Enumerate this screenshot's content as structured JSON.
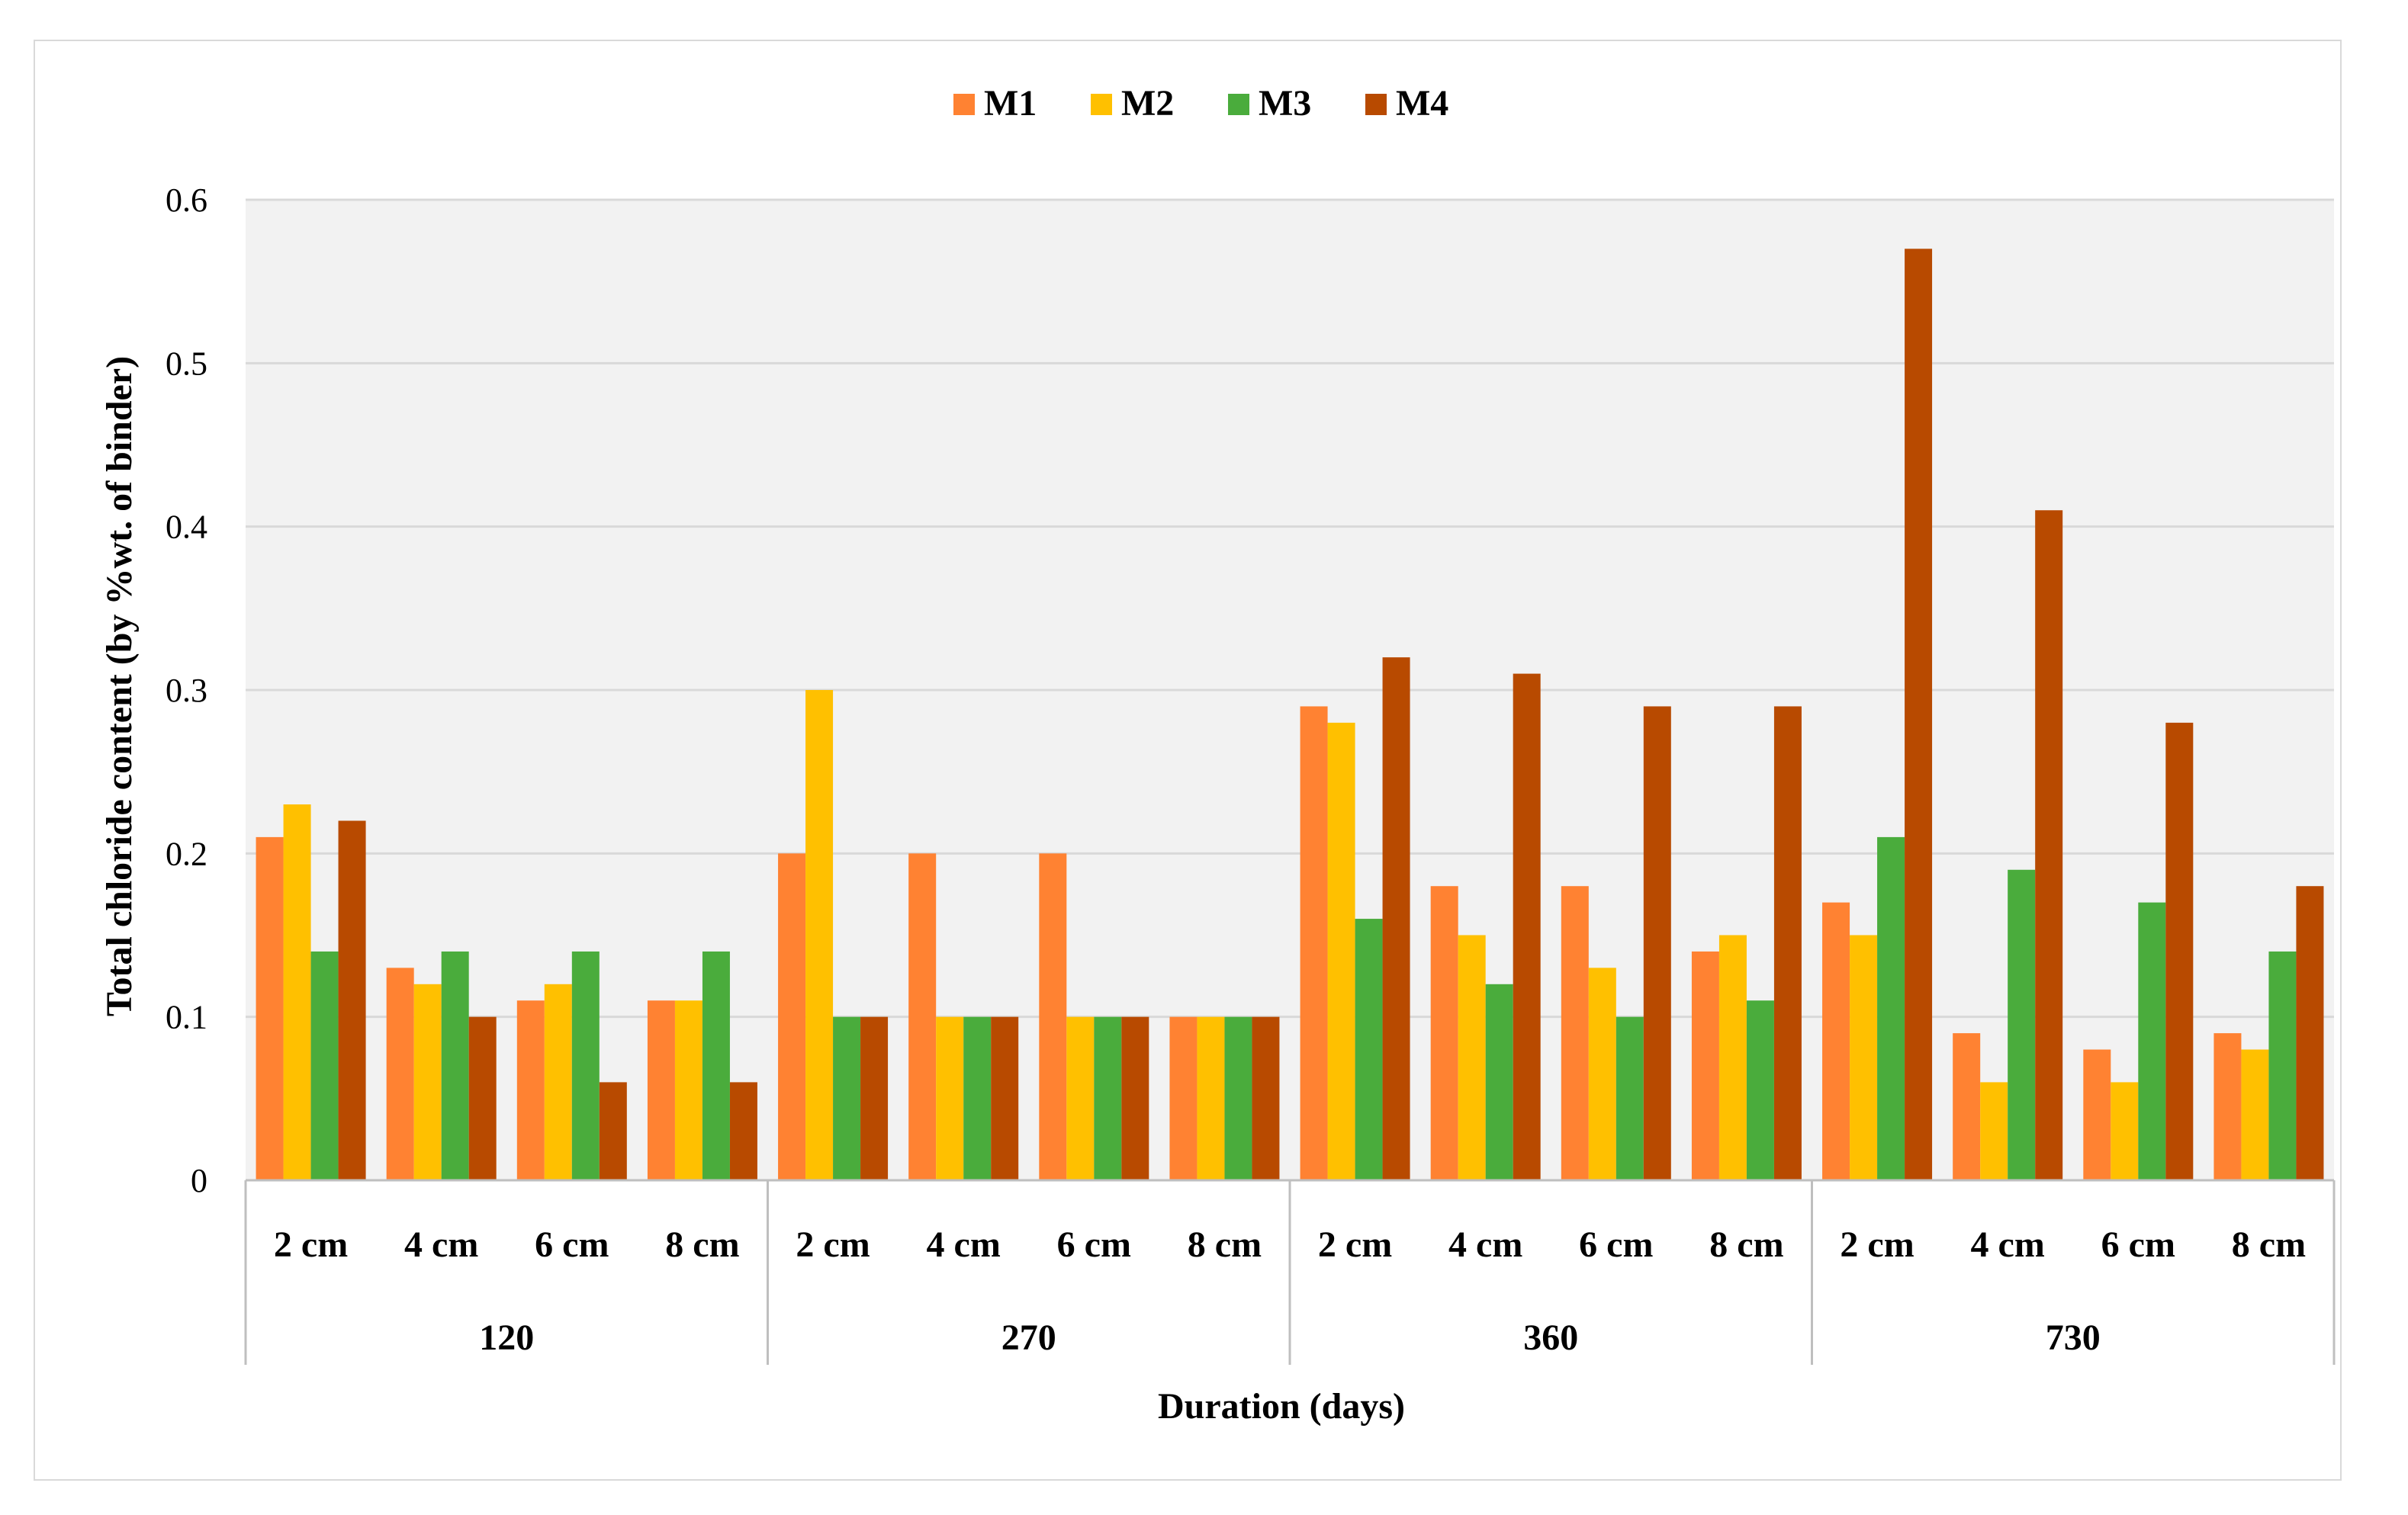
{
  "chart_data": {
    "type": "bar",
    "title": "",
    "xlabel": "Duration (days)",
    "ylabel": "Total chloride content  (by %wt. of binder)",
    "ylim": [
      0,
      0.6
    ],
    "yticks": [
      0,
      0.1,
      0.2,
      0.3,
      0.4,
      0.5,
      0.6
    ],
    "ytick_labels": [
      "0",
      "0.1",
      "0.2",
      "0.3",
      "0.4",
      "0.5",
      "0.6"
    ],
    "grid": true,
    "legend_position": "top-center",
    "groups": [
      {
        "label": "120",
        "categories": [
          "2 cm",
          "4 cm",
          "6 cm",
          "8 cm"
        ]
      },
      {
        "label": "270",
        "categories": [
          "2 cm",
          "4 cm",
          "6 cm",
          "8 cm"
        ]
      },
      {
        "label": "360",
        "categories": [
          "2 cm",
          "4 cm",
          "6 cm",
          "8 cm"
        ]
      },
      {
        "label": "730",
        "categories": [
          "2 cm",
          "4 cm",
          "6 cm",
          "8 cm"
        ]
      }
    ],
    "series": [
      {
        "name": "M1",
        "color": "#ff8232",
        "values": [
          0.21,
          0.13,
          0.11,
          0.11,
          0.2,
          0.2,
          0.2,
          0.1,
          0.29,
          0.18,
          0.18,
          0.14,
          0.17,
          0.09,
          0.08,
          0.09
        ]
      },
      {
        "name": "M2",
        "color": "#ffc000",
        "values": [
          0.23,
          0.12,
          0.12,
          0.11,
          0.3,
          0.1,
          0.1,
          0.1,
          0.28,
          0.15,
          0.13,
          0.15,
          0.15,
          0.06,
          0.06,
          0.08
        ]
      },
      {
        "name": "M3",
        "color": "#4aac3c",
        "values": [
          0.14,
          0.14,
          0.14,
          0.14,
          0.1,
          0.1,
          0.1,
          0.1,
          0.16,
          0.12,
          0.1,
          0.11,
          0.21,
          0.19,
          0.17,
          0.14
        ]
      },
      {
        "name": "M4",
        "color": "#b84a00",
        "values": [
          0.22,
          0.1,
          0.06,
          0.06,
          0.1,
          0.1,
          0.1,
          0.1,
          0.32,
          0.31,
          0.29,
          0.29,
          0.57,
          0.41,
          0.28,
          0.18
        ]
      }
    ]
  },
  "colors": {
    "plot_background": "#f2f2f2",
    "gridline": "#d9d9d9",
    "axis_line": "#bfbfbf"
  }
}
